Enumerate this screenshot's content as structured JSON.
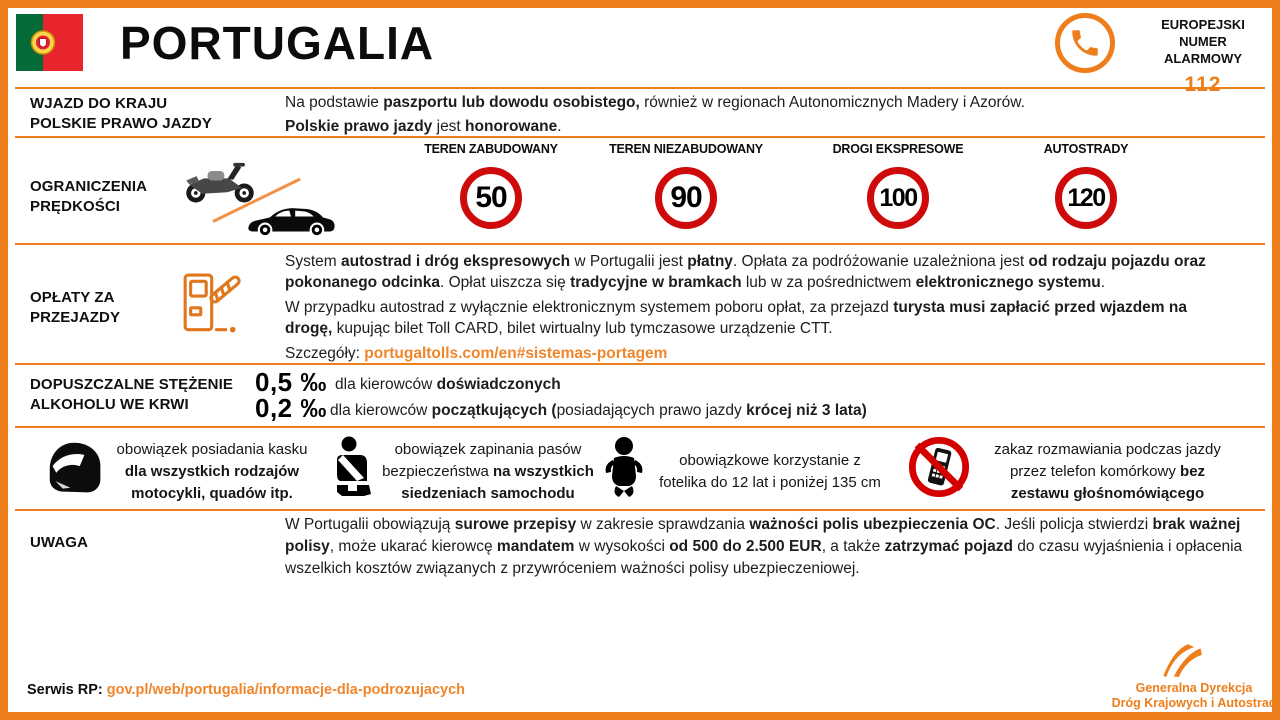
{
  "colors": {
    "accent": "#EE7E1B",
    "link_orange": "#F0862B",
    "sign_red": "#CE0A0A",
    "prohibition_red": "#D40000",
    "flag_green": "#046A38",
    "flag_red": "#E8252D"
  },
  "icons": {
    "portugal-flag-icon": "green/red flag with armillary emblem",
    "phone-icon": "orange handset in orange ring",
    "motorcycle-icon": "motorcycle silhouette",
    "car-icon": "black sedan silhouette",
    "slash-divider-icon": "orange diagonal line",
    "toll-gate-icon": "orange outlined toll booth with striped barrier",
    "helmet-icon": "black motorcycle helmet",
    "seatbelt-icon": "person wearing seatbelt pictogram",
    "child-seat-icon": "baby pictogram",
    "no-phone-icon": "mobile phone in red prohibition circle",
    "gddkia-logo-icon": "orange road swoosh"
  },
  "header": {
    "title": "PORTUGALIA",
    "emergency_line1": "EUROPEJSKI NUMER",
    "emergency_line2": "ALARMOWY",
    "emergency_number": "112"
  },
  "sections": {
    "entry": {
      "label_line1": "WJAZD DO KRAJU",
      "label_line2": "POLSKIE PRAWO JAZDY",
      "line1": [
        {
          "t": "Na podstawie "
        },
        {
          "t": "paszportu lub dowodu osobistego,",
          "b": true
        },
        {
          "t": " również w regionach Autonomicznych Madery i Azorów."
        }
      ],
      "line2": [
        {
          "t": "Polskie prawo jazdy",
          "b": true
        },
        {
          "t": " jest "
        },
        {
          "t": "honorowane",
          "b": true
        },
        {
          "t": "."
        }
      ]
    },
    "speed": {
      "label_line1": "OGRANICZENIA",
      "label_line2": "PRĘDKOŚCI",
      "signs": [
        {
          "category": "TEREN ZABUDOWANY",
          "limit": "50"
        },
        {
          "category": "TEREN NIEZABUDOWANY",
          "limit": "90"
        },
        {
          "category": "DROGI EKSPRESOWE",
          "limit": "100"
        },
        {
          "category": "AUTOSTRADY",
          "limit": "120"
        }
      ]
    },
    "tolls": {
      "label_line1": "OPŁATY ZA",
      "label_line2": "PRZEJAZDY",
      "para1": [
        {
          "t": "System "
        },
        {
          "t": "autostrad i dróg ekspresowych",
          "b": true
        },
        {
          "t": " w Portugalii jest "
        },
        {
          "t": "płatny",
          "b": true
        },
        {
          "t": ". Opłata za podróżowanie uzależniona jest "
        },
        {
          "t": "od rodzaju pojazdu oraz pokonanego odcinka",
          "b": true
        },
        {
          "t": ". Opłat uiszcza się "
        },
        {
          "t": "tradycyjne w bramkach",
          "b": true
        },
        {
          "t": " lub w za pośrednictwem "
        },
        {
          "t": "elektronicznego systemu",
          "b": true
        },
        {
          "t": "."
        }
      ],
      "para2": [
        {
          "t": "W przypadku autostrad z wyłącznie elektronicznym systemem poboru opłat, za przejazd "
        },
        {
          "t": "turysta musi zapłacić przed wjazdem na drogę,",
          "b": true
        },
        {
          "t": " kupując bilet Toll CARD, bilet wirtualny lub tymczasowe urządzenie CTT."
        }
      ],
      "details_prefix": "Szczegóły: ",
      "details_link": "portugaltolls.com/en#sistemas-portagem"
    },
    "alcohol": {
      "label_line1": "DOPUSZCZALNE STĘŻENIE",
      "label_line2": "ALKOHOLU WE KRWI",
      "rows": [
        {
          "value": "0,5 ‰",
          "text": [
            {
              "t": "dla kierowców "
            },
            {
              "t": "doświadczonych",
              "b": true
            }
          ]
        },
        {
          "value": "0,2 ‰",
          "text": [
            {
              "t": "dla kierowców "
            },
            {
              "t": "początkujących (",
              "b": true
            },
            {
              "t": "posiadających prawo jazdy "
            },
            {
              "t": "krócej niż 3 lata)",
              "b": true
            }
          ]
        }
      ]
    },
    "rules": [
      {
        "icon": "helmet-icon",
        "text": [
          {
            "t": "obowiązek posiadania kasku "
          },
          {
            "t": "dla wszystkich rodzajów motocykli, quadów itp.",
            "b": true
          }
        ]
      },
      {
        "icon": "seatbelt-icon",
        "text": [
          {
            "t": "obowiązek zapinania pasów bezpieczeństwa "
          },
          {
            "t": "na wszystkich siedzeniach samochodu",
            "b": true
          }
        ]
      },
      {
        "icon": "child-seat-icon",
        "text": [
          {
            "t": "obowiązkowe korzystanie z fotelika do 12 lat i poniżej 135 cm"
          }
        ]
      },
      {
        "icon": "no-phone-icon",
        "text": [
          {
            "t": "zakaz rozmawiania podczas jazdy przez telefon komórkowy "
          },
          {
            "t": "bez zestawu głośnomówiącego",
            "b": true
          }
        ]
      }
    ],
    "warning": {
      "label": "UWAGA",
      "text": [
        {
          "t": "W Portugalii obowiązują "
        },
        {
          "t": "surowe przepisy",
          "b": true
        },
        {
          "t": " w zakresie sprawdzania "
        },
        {
          "t": "ważności polis ubezpieczenia OC",
          "b": true
        },
        {
          "t": ". Jeśli policja stwierdzi "
        },
        {
          "t": "brak ważnej polisy",
          "b": true
        },
        {
          "t": ", może ukarać kierowcę "
        },
        {
          "t": "mandatem",
          "b": true
        },
        {
          "t": " w wysokości "
        },
        {
          "t": "od 500 do 2.500 EUR",
          "b": true
        },
        {
          "t": ", a także "
        },
        {
          "t": "zatrzymać pojazd",
          "b": true
        },
        {
          "t": " do czasu wyjaśnienia i opłacenia wszelkich kosztów związanych z przywróceniem ważności polisy ubezpieczeniowej."
        }
      ]
    }
  },
  "footer": {
    "service_label": "Serwis RP: ",
    "service_link": "gov.pl/web/portugalia/informacje-dla-podrozujacych",
    "logo_line1": "Generalna Dyrekcja",
    "logo_line2": "Dróg Krajowych i Autostrad"
  }
}
